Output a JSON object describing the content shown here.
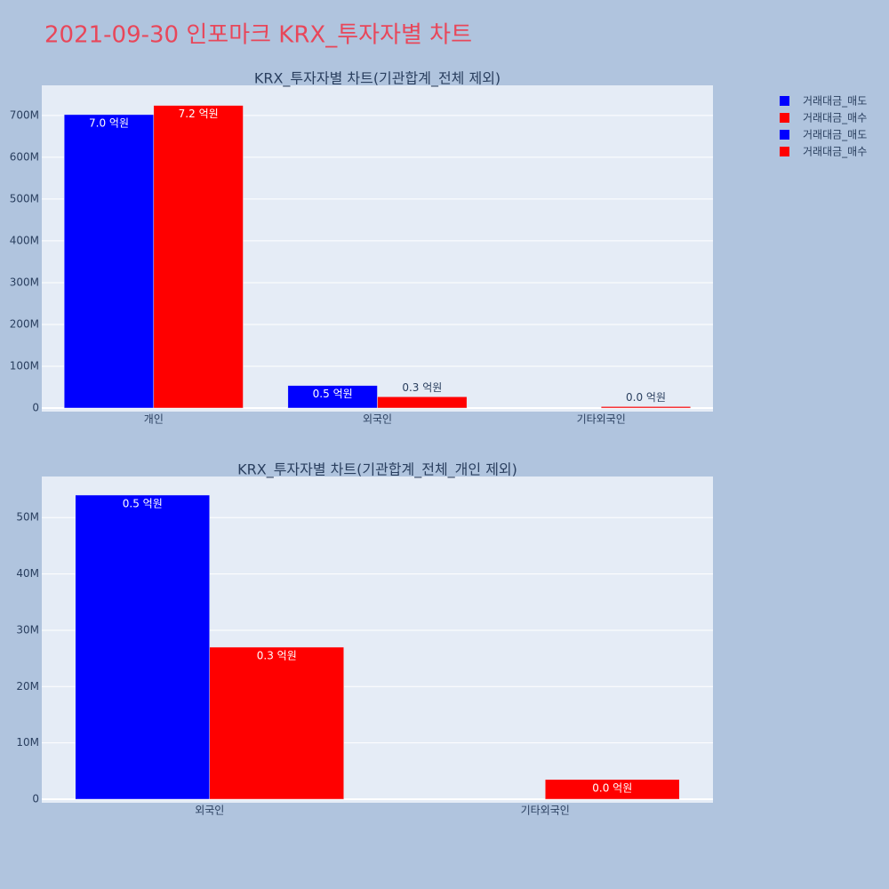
{
  "title": "2021-09-30 인포마크 KRX_투자자별 차트",
  "chart_data": [
    {
      "type": "bar",
      "title": "KRX_투자자별 차트(기관합계_전체 제외)",
      "categories": [
        "개인",
        "외국인",
        "기타외국인"
      ],
      "series": [
        {
          "name": "거래대금_매도",
          "color": "#0000ff",
          "values": [
            702000000,
            54000000,
            null
          ],
          "value_labels": [
            "7.0 억원",
            "0.5 억원",
            null
          ]
        },
        {
          "name": "거래대금_매수",
          "color": "#ff0000",
          "values": [
            724000000,
            27000000,
            3500000
          ],
          "value_labels": [
            "7.2 억원",
            "0.3 억원",
            "0.0 억원"
          ]
        }
      ],
      "ylim": [
        -8500000,
        772000000
      ],
      "yticks": [
        0,
        {
          "value": 100000000,
          "label": "100M"
        },
        {
          "value": 200000000,
          "label": "200M"
        },
        {
          "value": 300000000,
          "label": "300M"
        },
        {
          "value": 400000000,
          "label": "400M"
        },
        {
          "value": 500000000,
          "label": "500M"
        },
        {
          "value": 600000000,
          "label": "600M"
        },
        {
          "value": 700000000,
          "label": "700M"
        }
      ],
      "grid": true
    },
    {
      "type": "bar",
      "title": "KRX_투자자별 차트(기관합계_전체_개인 제외)",
      "categories": [
        "외국인",
        "기타외국인"
      ],
      "series": [
        {
          "name": "거래대금_매도",
          "color": "#0000ff",
          "values": [
            54000000,
            null
          ],
          "value_labels": [
            "0.5 억원",
            null
          ]
        },
        {
          "name": "거래대금_매수",
          "color": "#ff0000",
          "values": [
            27000000,
            3500000
          ],
          "value_labels": [
            "0.3 억원",
            "0.0 억원"
          ]
        }
      ],
      "ylim": [
        -630000,
        57300000
      ],
      "yticks": [
        0,
        {
          "value": 10000000,
          "label": "10M"
        },
        {
          "value": 20000000,
          "label": "20M"
        },
        {
          "value": 30000000,
          "label": "30M"
        },
        {
          "value": 40000000,
          "label": "40M"
        },
        {
          "value": 50000000,
          "label": "50M"
        }
      ],
      "grid": true
    }
  ]
}
